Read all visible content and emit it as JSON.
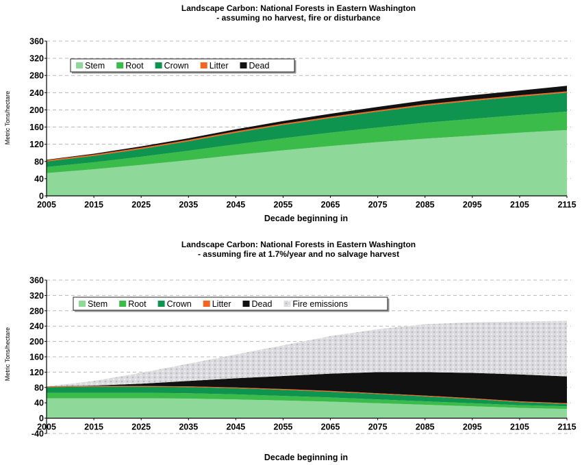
{
  "chart_data": [
    {
      "type": "area",
      "stacked": true,
      "title": "Landscape Carbon:  National Forests in Eastern Washington",
      "subtitle": "- assuming no harvest, fire or disturbance",
      "xlabel": "Decade beginning in",
      "ylabel": "Metric Tons/hectare",
      "xlim": [
        2005,
        2115
      ],
      "ylim": [
        0,
        360
      ],
      "xticks": [
        "2005",
        "2015",
        "2025",
        "2035",
        "2045",
        "2055",
        "2065",
        "2075",
        "2085",
        "2095",
        "2105",
        "2115"
      ],
      "yticks": [
        "0",
        "40",
        "80",
        "120",
        "160",
        "200",
        "240",
        "280",
        "320",
        "360"
      ],
      "grid": "horizontal dashed",
      "legend_position": "top-left",
      "x": [
        2005,
        2015,
        2025,
        2035,
        2045,
        2055,
        2065,
        2075,
        2085,
        2095,
        2105,
        2115
      ],
      "series": [
        {
          "name": "Stem",
          "color": "#8ed89a",
          "values": [
            53,
            62,
            72,
            83,
            95,
            106,
            116,
            125,
            133,
            140,
            147,
            153
          ]
        },
        {
          "name": "Root",
          "color": "#3bbb4a",
          "values": [
            14,
            16,
            19,
            22,
            25,
            28,
            31,
            34,
            37,
            39,
            41,
            43
          ]
        },
        {
          "name": "Crown",
          "color": "#0f9450",
          "values": [
            13,
            15,
            18,
            22,
            27,
            31,
            34,
            37,
            40,
            42,
            43,
            44
          ]
        },
        {
          "name": "Litter",
          "color": "#f26522",
          "values": [
            3,
            3,
            3,
            3,
            3,
            3,
            3,
            3,
            3,
            3,
            3,
            3
          ]
        },
        {
          "name": "Dead",
          "color": "#111111",
          "values": [
            1,
            2,
            3,
            4,
            5,
            6,
            7,
            8,
            9,
            10,
            11,
            13
          ]
        }
      ]
    },
    {
      "type": "area",
      "stacked": true,
      "title": "Landscape Carbon:  National Forests in Eastern Washington",
      "subtitle": "- assuming fire at 1.7%/year and no salvage harvest",
      "xlabel": "Decade beginning in",
      "ylabel": "Metric Tons/hectare",
      "xlim": [
        2005,
        2115
      ],
      "ylim": [
        -40,
        360
      ],
      "xticks": [
        "2005",
        "2015",
        "2025",
        "2035",
        "2045",
        "2055",
        "2065",
        "2075",
        "2085",
        "2095",
        "2105",
        "2115"
      ],
      "yticks": [
        "-40",
        "0",
        "40",
        "80",
        "120",
        "160",
        "200",
        "240",
        "280",
        "320",
        "360"
      ],
      "grid": "horizontal dashed",
      "legend_position": "top-left",
      "x": [
        2005,
        2015,
        2025,
        2035,
        2045,
        2055,
        2065,
        2075,
        2085,
        2095,
        2105,
        2115
      ],
      "series": [
        {
          "name": "Stem",
          "color": "#8ed89a",
          "values": [
            52,
            52,
            52,
            51,
            49,
            46,
            43,
            39,
            35,
            31,
            27,
            24
          ]
        },
        {
          "name": "Root",
          "color": "#3bbb4a",
          "values": [
            14,
            14,
            14,
            14,
            13,
            12,
            11,
            10,
            9,
            8,
            7,
            7
          ]
        },
        {
          "name": "Crown",
          "color": "#0f9450",
          "values": [
            15,
            16,
            16,
            16,
            16,
            16,
            15,
            14,
            13,
            11,
            8,
            6
          ]
        },
        {
          "name": "Litter",
          "color": "#f26522",
          "values": [
            2,
            2,
            2,
            2,
            2,
            2,
            2,
            2,
            2,
            2,
            2,
            2
          ]
        },
        {
          "name": "Dead",
          "color": "#111111",
          "values": [
            0,
            1,
            6,
            14,
            24,
            34,
            45,
            55,
            61,
            66,
            70,
            70
          ]
        },
        {
          "name": "Fire emissions",
          "color": "#d4d4d8",
          "values": [
            0,
            12,
            28,
            45,
            62,
            80,
            98,
            112,
            125,
            132,
            138,
            145
          ]
        }
      ]
    }
  ]
}
